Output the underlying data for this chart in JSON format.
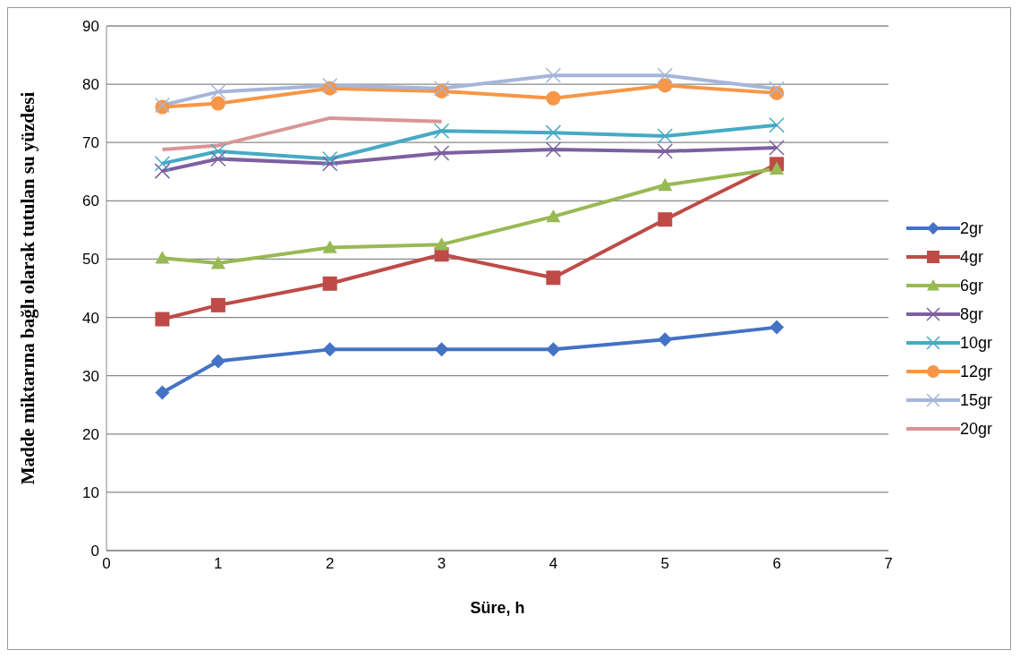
{
  "chart_data": {
    "type": "line",
    "xlabel": "Süre, h",
    "ylabel": "Madde miktarına bağlı olarak tutulan su yüzdesi",
    "x": [
      0.5,
      1,
      2,
      3,
      4,
      5,
      6
    ],
    "xlim": [
      0,
      7
    ],
    "xticks": [
      0,
      1,
      2,
      3,
      4,
      5,
      6,
      7
    ],
    "ylim": [
      0,
      90
    ],
    "yticks": [
      0,
      10,
      20,
      30,
      40,
      50,
      60,
      70,
      80,
      90
    ],
    "grid": "y",
    "legend": "right",
    "series": [
      {
        "name": "2gr",
        "color": "#4472c4",
        "marker": "diamond",
        "values": [
          27.1,
          32.5,
          34.5,
          34.5,
          34.5,
          36.2,
          38.3
        ]
      },
      {
        "name": "4gr",
        "color": "#be4b48",
        "marker": "square",
        "values": [
          39.7,
          42.1,
          45.8,
          50.8,
          46.8,
          56.8,
          66.3
        ]
      },
      {
        "name": "6gr",
        "color": "#98b954",
        "marker": "triangle",
        "values": [
          50.2,
          49.3,
          52.0,
          52.5,
          57.3,
          62.7,
          65.5
        ]
      },
      {
        "name": "8gr",
        "color": "#7d60a0",
        "marker": "cross",
        "values": [
          65.1,
          67.2,
          66.4,
          68.2,
          68.8,
          68.5,
          69.1
        ]
      },
      {
        "name": "10gr",
        "color": "#46aac5",
        "marker": "cross",
        "values": [
          66.4,
          68.5,
          67.2,
          72.0,
          71.7,
          71.1,
          73.0
        ]
      },
      {
        "name": "12gr",
        "color": "#f79646",
        "marker": "circle",
        "values": [
          76.1,
          76.7,
          79.3,
          78.8,
          77.6,
          79.8,
          78.5
        ]
      },
      {
        "name": "15gr",
        "color": "#a5b6da",
        "marker": "cross",
        "values": [
          76.4,
          78.7,
          79.8,
          79.3,
          81.5,
          81.5,
          79.2
        ]
      },
      {
        "name": "20gr",
        "color": "#d99594",
        "marker": "none",
        "values": [
          68.8,
          69.5,
          74.2,
          73.6,
          null,
          null,
          null
        ]
      }
    ]
  }
}
